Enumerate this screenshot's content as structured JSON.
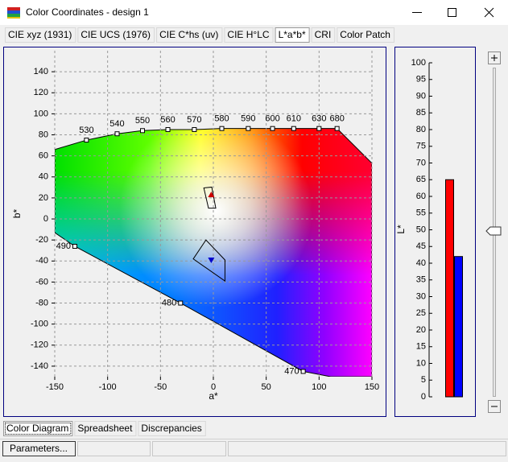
{
  "window": {
    "title": "Color Coordinates - design 1"
  },
  "tabs": [
    "CIE xyz (1931)",
    "CIE UCS (1976)",
    "CIE C*hs (uv)",
    "CIE H°LC",
    "L*a*b*",
    "CRI",
    "Color Patch"
  ],
  "active_tab": 4,
  "bottom_tabs": [
    "Color Diagram",
    "Spreadsheet",
    "Discrepancies"
  ],
  "active_bottom_tab": 0,
  "button": "Parameters...",
  "chart_data": [
    {
      "type": "scatter",
      "xlabel": "a*",
      "ylabel": "b*",
      "xlim": [
        -150,
        150
      ],
      "ylim": [
        -150,
        160
      ],
      "xticks": [
        -150,
        -100,
        -50,
        0,
        50,
        100,
        150
      ],
      "yticks": [
        -140,
        -120,
        -100,
        -80,
        -60,
        -40,
        -20,
        0,
        20,
        40,
        60,
        80,
        100,
        120,
        140
      ],
      "grid": true,
      "boundary": {
        "a": [
          -150,
          -120,
          -91,
          -67,
          -43,
          -18,
          8,
          33,
          56,
          76,
          100,
          117,
          150,
          150,
          111,
          85,
          -31,
          -131,
          -150
        ],
        "b": [
          66,
          75,
          81,
          84,
          85,
          85,
          86,
          86,
          86,
          86,
          86,
          86,
          53,
          -150,
          -150,
          -145,
          -80,
          -26,
          -13
        ]
      },
      "wavelengths": {
        "labels": [
          530,
          540,
          550,
          560,
          570,
          580,
          590,
          600,
          610,
          630,
          680,
          490,
          480,
          470
        ],
        "a": [
          -120,
          -91,
          -67,
          -43,
          -18,
          8,
          33,
          56,
          76,
          100,
          117,
          -131,
          -31,
          85
        ],
        "b": [
          75,
          81,
          84,
          85,
          85,
          86,
          86,
          86,
          86,
          86,
          86,
          -26,
          -80,
          -145
        ]
      },
      "regions": [
        {
          "a": [
            -9,
            -1.5,
            2.3,
            -4.6
          ],
          "b": [
            29.5,
            30.3,
            10.3,
            10.3
          ]
        },
        {
          "a": [
            -19,
            -7,
            11,
            11
          ],
          "b": [
            -38,
            -20,
            -39,
            -59
          ]
        }
      ],
      "points": {
        "a": [
          -2,
          -2
        ],
        "b": [
          23,
          -39
        ],
        "colors": [
          "#cc0000",
          "#0000cc"
        ],
        "shapes": [
          "up",
          "down"
        ]
      }
    },
    {
      "type": "bar",
      "ylabel": "L*",
      "ylim": [
        0,
        100
      ],
      "yticks": [
        0,
        5,
        10,
        15,
        20,
        25,
        30,
        35,
        40,
        45,
        50,
        55,
        60,
        65,
        70,
        75,
        80,
        85,
        90,
        95,
        100
      ],
      "series": [
        {
          "color": "#ff0000",
          "values": [
            65
          ]
        },
        {
          "color": "#0000ff",
          "values": [
            42
          ]
        }
      ]
    }
  ]
}
